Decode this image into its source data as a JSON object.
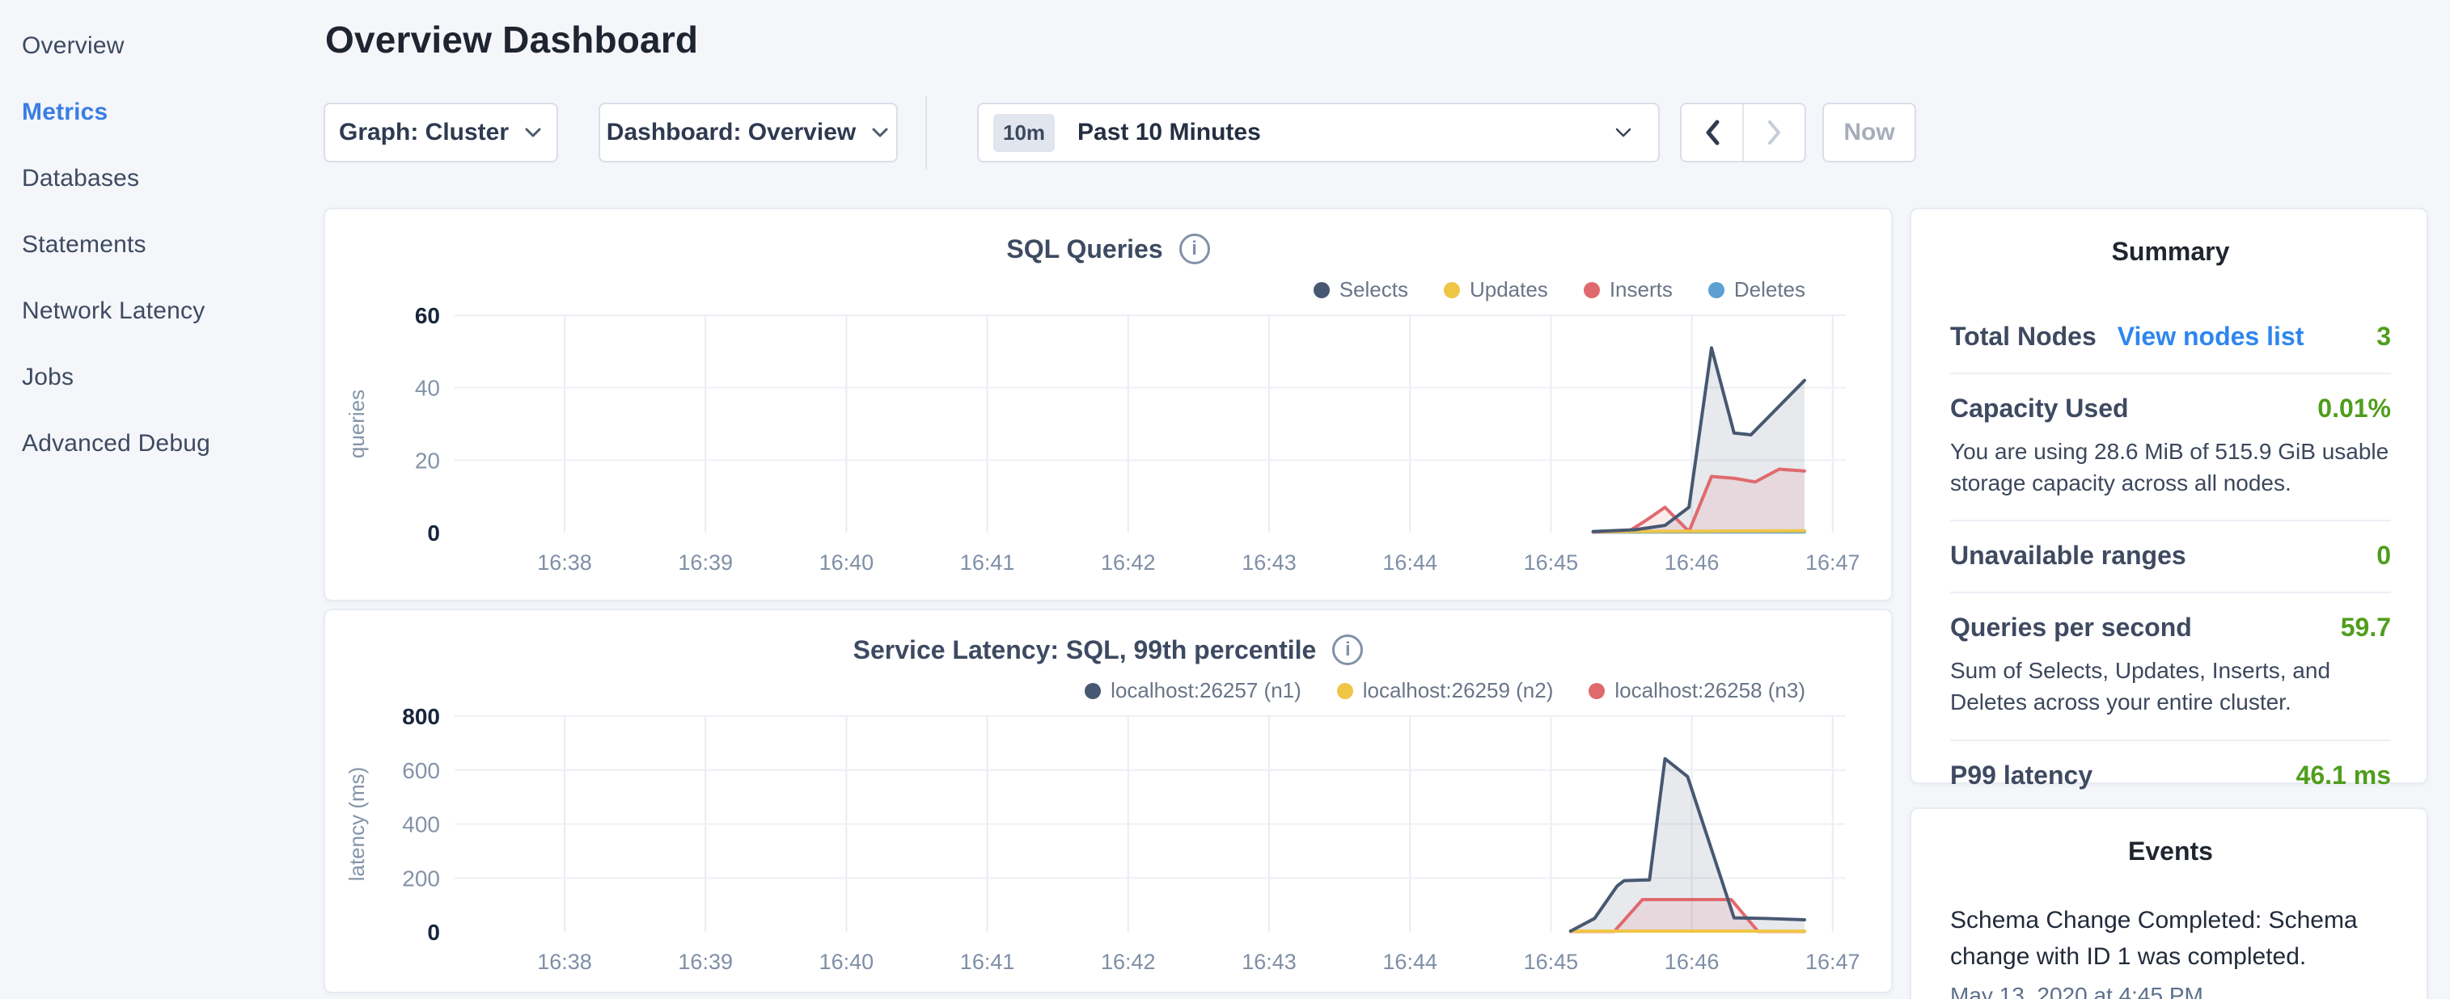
{
  "sidebar": {
    "items": [
      {
        "label": "Overview",
        "active": false
      },
      {
        "label": "Metrics",
        "active": true
      },
      {
        "label": "Databases",
        "active": false
      },
      {
        "label": "Statements",
        "active": false
      },
      {
        "label": "Network Latency",
        "active": false
      },
      {
        "label": "Jobs",
        "active": false
      },
      {
        "label": "Advanced Debug",
        "active": false
      }
    ]
  },
  "header": {
    "title": "Overview Dashboard"
  },
  "toolbar": {
    "graph_dropdown": "Graph: Cluster",
    "dashboard_dropdown": "Dashboard: Overview",
    "time_range_badge": "10m",
    "time_range_label": "Past 10 Minutes",
    "now_label": "Now"
  },
  "icons": {
    "dropdown": "chevron-down-icon",
    "prev": "chevron-left-icon",
    "next": "chevron-right-icon",
    "chart_info": "info-icon"
  },
  "colors": {
    "page_bg": "#f4f6fa",
    "accent_blue": "#3a7de4",
    "link_blue": "#2e86ee",
    "value_green": "#4f9d1d",
    "series_navy": "#475872",
    "series_yellow": "#efc545",
    "series_red": "#e0696e",
    "series_blue": "#5b9fd3"
  },
  "chart_data": [
    {
      "type": "area",
      "title": "SQL Queries",
      "xlabel": "",
      "ylabel": "queries",
      "ylim": [
        0,
        60
      ],
      "yticks": [
        0,
        20,
        40,
        60
      ],
      "xticks": [
        "16:38",
        "16:39",
        "16:40",
        "16:41",
        "16:42",
        "16:43",
        "16:44",
        "16:45",
        "16:46",
        "16:47"
      ],
      "grid": true,
      "legend_position": "top-right",
      "series": [
        {
          "name": "Selects",
          "color": "#475872",
          "points": [
            [
              7.3,
              0.3
            ],
            [
              7.6,
              0.8
            ],
            [
              7.81,
              2
            ],
            [
              7.98,
              7
            ],
            [
              8.14,
              51
            ],
            [
              8.3,
              27.5
            ],
            [
              8.42,
              27
            ],
            [
              8.8,
              42
            ]
          ]
        },
        {
          "name": "Updates",
          "color": "#efc545",
          "points": [
            [
              7.3,
              0.3
            ],
            [
              8.1,
              0.4
            ],
            [
              8.8,
              0.5
            ]
          ]
        },
        {
          "name": "Inserts",
          "color": "#e0696e",
          "points": [
            [
              7.3,
              0.2
            ],
            [
              7.55,
              0.3
            ],
            [
              7.68,
              3.5
            ],
            [
              7.81,
              7
            ],
            [
              7.98,
              0.3
            ],
            [
              8.14,
              15.5
            ],
            [
              8.3,
              15
            ],
            [
              8.45,
              14
            ],
            [
              8.62,
              17.5
            ],
            [
              8.8,
              17
            ]
          ]
        },
        {
          "name": "Deletes",
          "color": "#5b9fd3",
          "points": [
            [
              7.3,
              0.15
            ],
            [
              8.8,
              0.2
            ]
          ]
        }
      ]
    },
    {
      "type": "area",
      "title": "Service Latency: SQL, 99th percentile",
      "xlabel": "",
      "ylabel": "latency (ms)",
      "ylim": [
        0,
        800
      ],
      "yticks": [
        0,
        200,
        400,
        600,
        800
      ],
      "xticks": [
        "16:38",
        "16:39",
        "16:40",
        "16:41",
        "16:42",
        "16:43",
        "16:44",
        "16:45",
        "16:46",
        "16:47"
      ],
      "grid": true,
      "legend_position": "top-right",
      "series": [
        {
          "name": "localhost:26257 (n1)",
          "color": "#475872",
          "points": [
            [
              7.14,
              3
            ],
            [
              7.31,
              50
            ],
            [
              7.47,
              170
            ],
            [
              7.52,
              190
            ],
            [
              7.7,
              193
            ],
            [
              7.81,
              642
            ],
            [
              7.97,
              576
            ],
            [
              8.3,
              52
            ],
            [
              8.52,
              50
            ],
            [
              8.8,
              45
            ]
          ]
        },
        {
          "name": "localhost:26259 (n2)",
          "color": "#efc545",
          "points": [
            [
              7.14,
              3
            ],
            [
              8.8,
              3
            ]
          ]
        },
        {
          "name": "localhost:26258 (n3)",
          "color": "#e0696e",
          "points": [
            [
              7.14,
              2
            ],
            [
              7.45,
              2
            ],
            [
              7.65,
              120
            ],
            [
              8.28,
              120
            ],
            [
              8.47,
              2
            ],
            [
              8.8,
              2
            ]
          ]
        }
      ]
    }
  ],
  "summary": {
    "title": "Summary",
    "rows": [
      {
        "label": "Total Nodes",
        "link": "View nodes list",
        "value": "3"
      },
      {
        "label": "Capacity Used",
        "value": "0.01%",
        "description": "You are using 28.6 MiB of 515.9 GiB usable storage capacity across all nodes."
      },
      {
        "label": "Unavailable ranges",
        "value": "0"
      },
      {
        "label": "Queries per second",
        "value": "59.7",
        "description": "Sum of Selects, Updates, Inserts, and Deletes across your entire cluster."
      },
      {
        "label": "P99 latency",
        "value": "46.1 ms"
      }
    ]
  },
  "events": {
    "title": "Events",
    "items": [
      {
        "text": "Schema Change Completed: Schema change with ID 1 was completed.",
        "timestamp": "May 13, 2020 at 4:45 PM"
      }
    ]
  }
}
